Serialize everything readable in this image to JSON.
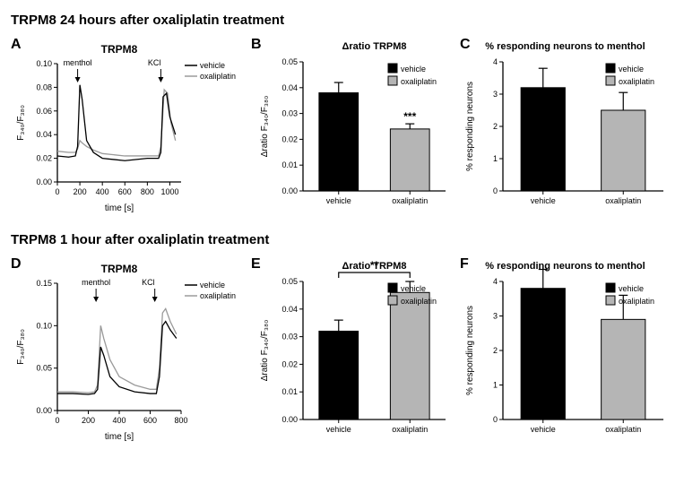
{
  "section24": {
    "title": "TRPM8 24 hours after oxaliplatin treatment",
    "trace": {
      "letter": "A",
      "title": "TRPM8",
      "ylabel": "F₃₄₀/F₃₈₀",
      "xlabel": "time [s]",
      "ylim": [
        0,
        0.1
      ],
      "ytick_step": 0.02,
      "xlim": [
        0,
        1100
      ],
      "xtick_step": 200,
      "legend": [
        "vehicle",
        "oxaliplatin"
      ],
      "colors": {
        "vehicle": "#000000",
        "oxaliplatin": "#9a9a9a"
      },
      "annotations": [
        {
          "label": "menthol",
          "x": 180
        },
        {
          "label": "KCl",
          "x": 920
        }
      ],
      "vehicle_series": [
        [
          0,
          0.022
        ],
        [
          100,
          0.021
        ],
        [
          160,
          0.022
        ],
        [
          180,
          0.03
        ],
        [
          200,
          0.082
        ],
        [
          220,
          0.07
        ],
        [
          260,
          0.035
        ],
        [
          320,
          0.025
        ],
        [
          400,
          0.02
        ],
        [
          600,
          0.018
        ],
        [
          800,
          0.02
        ],
        [
          900,
          0.02
        ],
        [
          920,
          0.025
        ],
        [
          940,
          0.072
        ],
        [
          970,
          0.075
        ],
        [
          1000,
          0.055
        ],
        [
          1050,
          0.04
        ]
      ],
      "oxaliplatin_series": [
        [
          0,
          0.026
        ],
        [
          100,
          0.025
        ],
        [
          160,
          0.025
        ],
        [
          180,
          0.028
        ],
        [
          200,
          0.035
        ],
        [
          220,
          0.033
        ],
        [
          260,
          0.03
        ],
        [
          320,
          0.027
        ],
        [
          400,
          0.024
        ],
        [
          600,
          0.022
        ],
        [
          800,
          0.022
        ],
        [
          900,
          0.022
        ],
        [
          920,
          0.03
        ],
        [
          950,
          0.078
        ],
        [
          980,
          0.075
        ],
        [
          1010,
          0.05
        ],
        [
          1050,
          0.035
        ]
      ]
    },
    "bar_ratio": {
      "letter": "B",
      "title": "Δratio TRPM8",
      "ylabel": "Δratio F₃₄₀/F₃₈₀",
      "ylim": [
        0,
        0.05
      ],
      "ytick_step": 0.01,
      "categories": [
        "vehicle",
        "oxaliplatin"
      ],
      "values": [
        0.038,
        0.024
      ],
      "errors": [
        0.004,
        0.002
      ],
      "colors": [
        "#000000",
        "#b5b5b5"
      ],
      "sig_label": "***"
    },
    "bar_pct": {
      "letter": "C",
      "title": "% responding neurons to menthol",
      "ylabel": "% responding neurons",
      "ylim": [
        0,
        4
      ],
      "ytick_step": 1,
      "categories": [
        "vehicle",
        "oxaliplatin"
      ],
      "values": [
        3.2,
        2.5
      ],
      "errors": [
        0.6,
        0.55
      ],
      "colors": [
        "#000000",
        "#b5b5b5"
      ]
    }
  },
  "section1": {
    "title": "TRPM8 1 hour after oxaliplatin treatment",
    "trace": {
      "letter": "D",
      "title": "TRPM8",
      "ylabel": "F₃₄₀/F₃₈₀",
      "xlabel": "time [s]",
      "ylim": [
        0,
        0.15
      ],
      "ytick_step": 0.05,
      "xlim": [
        0,
        800
      ],
      "xtick_step": 200,
      "legend": [
        "vehicle",
        "oxaliplatin"
      ],
      "colors": {
        "vehicle": "#000000",
        "oxaliplatin": "#9a9a9a"
      },
      "annotations": [
        {
          "label": "menthol",
          "x": 250
        },
        {
          "label": "KCl",
          "x": 630
        }
      ],
      "vehicle_series": [
        [
          0,
          0.02
        ],
        [
          100,
          0.02
        ],
        [
          200,
          0.019
        ],
        [
          240,
          0.02
        ],
        [
          260,
          0.025
        ],
        [
          280,
          0.075
        ],
        [
          300,
          0.065
        ],
        [
          340,
          0.04
        ],
        [
          400,
          0.028
        ],
        [
          500,
          0.022
        ],
        [
          600,
          0.02
        ],
        [
          640,
          0.02
        ],
        [
          660,
          0.04
        ],
        [
          680,
          0.1
        ],
        [
          700,
          0.105
        ],
        [
          730,
          0.095
        ],
        [
          770,
          0.085
        ]
      ],
      "oxaliplatin_series": [
        [
          0,
          0.022
        ],
        [
          100,
          0.022
        ],
        [
          200,
          0.021
        ],
        [
          240,
          0.022
        ],
        [
          260,
          0.03
        ],
        [
          280,
          0.1
        ],
        [
          300,
          0.085
        ],
        [
          340,
          0.06
        ],
        [
          400,
          0.04
        ],
        [
          500,
          0.03
        ],
        [
          600,
          0.025
        ],
        [
          640,
          0.025
        ],
        [
          660,
          0.05
        ],
        [
          680,
          0.115
        ],
        [
          700,
          0.12
        ],
        [
          730,
          0.105
        ],
        [
          770,
          0.09
        ]
      ]
    },
    "bar_ratio": {
      "letter": "E",
      "title": "Δratio TRPM8",
      "ylabel": "Δratio F₃₄₀/F₃₈₀",
      "ylim": [
        0,
        0.05
      ],
      "ytick_step": 0.01,
      "categories": [
        "vehicle",
        "oxaliplatin"
      ],
      "values": [
        0.032,
        0.046
      ],
      "errors": [
        0.004,
        0.004
      ],
      "colors": [
        "#000000",
        "#b5b5b5"
      ],
      "sig_label": "**",
      "sig_bracket": true
    },
    "bar_pct": {
      "letter": "F",
      "title": "% responding neurons to menthol",
      "ylabel": "% responding neurons",
      "ylim": [
        0,
        4
      ],
      "ytick_step": 1,
      "categories": [
        "vehicle",
        "oxaliplatin"
      ],
      "values": [
        3.8,
        2.9
      ],
      "errors": [
        0.55,
        0.7
      ],
      "colors": [
        "#000000",
        "#b5b5b5"
      ]
    }
  },
  "style": {
    "axis_color": "#000000",
    "font_size_axis": 10,
    "font_size_title": 11,
    "bg": "#ffffff"
  }
}
